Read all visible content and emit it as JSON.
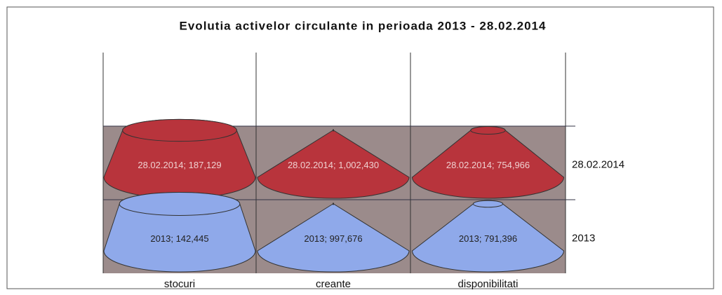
{
  "chart_data": {
    "type": "cone3d",
    "title": "Evolutia activelor circulante in perioada 2013 - 28.02.2014",
    "categories": [
      "stocuri",
      "creante",
      "disponibilitati"
    ],
    "series": [
      {
        "name": "28.02.2014",
        "color": "#b8343c",
        "values": [
          187129,
          1002430,
          754966
        ],
        "value_labels": [
          "28.02.2014; 187,129",
          "28.02.2014; 1,002,430",
          "28.02.2014; 754,966"
        ]
      },
      {
        "name": "2013",
        "color": "#8fa9ea",
        "values": [
          142445,
          997676,
          791396
        ],
        "value_labels": [
          "2013; 142,445",
          "2013; 997,676",
          "2013; 791,396"
        ]
      }
    ]
  }
}
